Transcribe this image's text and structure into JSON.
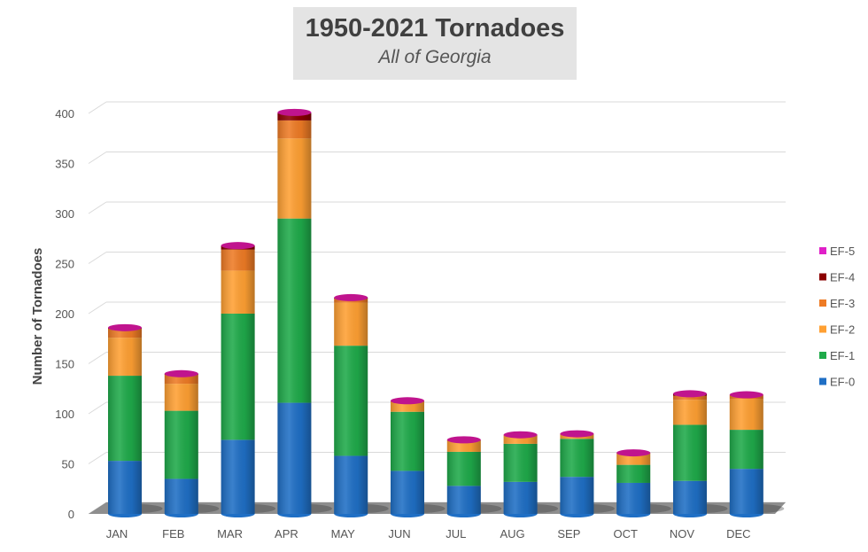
{
  "chart_data": {
    "type": "bar",
    "stacked": true,
    "title": "1950-2021 Tornadoes",
    "subtitle": "All of Georgia",
    "xlabel": "",
    "ylabel": "Number of Tornadoes",
    "ylim": [
      0,
      400
    ],
    "yticks": [
      0,
      50,
      100,
      150,
      200,
      250,
      300,
      350,
      400
    ],
    "grid": true,
    "legend_position": "right",
    "categories": [
      "JAN",
      "FEB",
      "MAR",
      "APR",
      "MAY",
      "JUN",
      "JUL",
      "AUG",
      "SEP",
      "OCT",
      "NOV",
      "DEC"
    ],
    "series": [
      {
        "name": "EF-0",
        "color": "#1f6fc5",
        "values": [
          53,
          35,
          74,
          111,
          58,
          43,
          28,
          32,
          37,
          31,
          33,
          45
        ]
      },
      {
        "name": "EF-1",
        "color": "#1faa4a",
        "values": [
          85,
          68,
          126,
          184,
          110,
          59,
          34,
          38,
          38,
          18,
          56,
          39
        ]
      },
      {
        "name": "EF-2",
        "color": "#ffa033",
        "values": [
          38,
          27,
          43,
          80,
          43,
          10,
          11,
          9,
          5,
          11,
          25,
          31
        ]
      },
      {
        "name": "EF-3",
        "color": "#ee7b25",
        "values": [
          9,
          9,
          21,
          18,
          4,
          1,
          1,
          0,
          0,
          1,
          4,
          4
        ]
      },
      {
        "name": "EF-4",
        "color": "#8b0000",
        "values": [
          1,
          1,
          4,
          7,
          1,
          0,
          0,
          0,
          0,
          0,
          2,
          0
        ]
      },
      {
        "name": "EF-5",
        "color": "#e020c8",
        "values": [
          0,
          0,
          0,
          1,
          0,
          0,
          0,
          0,
          0,
          0,
          0,
          0
        ]
      }
    ]
  }
}
